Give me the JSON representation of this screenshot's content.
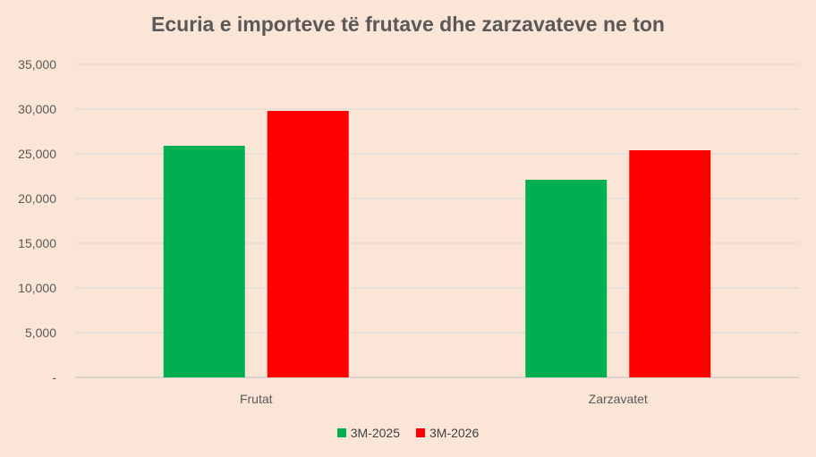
{
  "chart_data": {
    "type": "bar",
    "title": "Ecuria e importeve të frutave dhe zarzavateve ne ton",
    "categories": [
      "Frutat",
      "Zarzavatet"
    ],
    "series": [
      {
        "name": "3M-2025",
        "color": "#00b050",
        "values": [
          25900,
          22100
        ]
      },
      {
        "name": "3M-2026",
        "color": "#ff0000",
        "values": [
          29800,
          25400
        ]
      }
    ],
    "ylim": [
      0,
      35000
    ],
    "y_ticks": [
      {
        "value": 0,
        "label": "-"
      },
      {
        "value": 5000,
        "label": "5,000"
      },
      {
        "value": 10000,
        "label": "10,000"
      },
      {
        "value": 15000,
        "label": "15,000"
      },
      {
        "value": 20000,
        "label": "20,000"
      },
      {
        "value": 25000,
        "label": "25,000"
      },
      {
        "value": 30000,
        "label": "30,000"
      },
      {
        "value": 35000,
        "label": "35,000"
      }
    ],
    "grid": true,
    "legend_position": "bottom"
  }
}
